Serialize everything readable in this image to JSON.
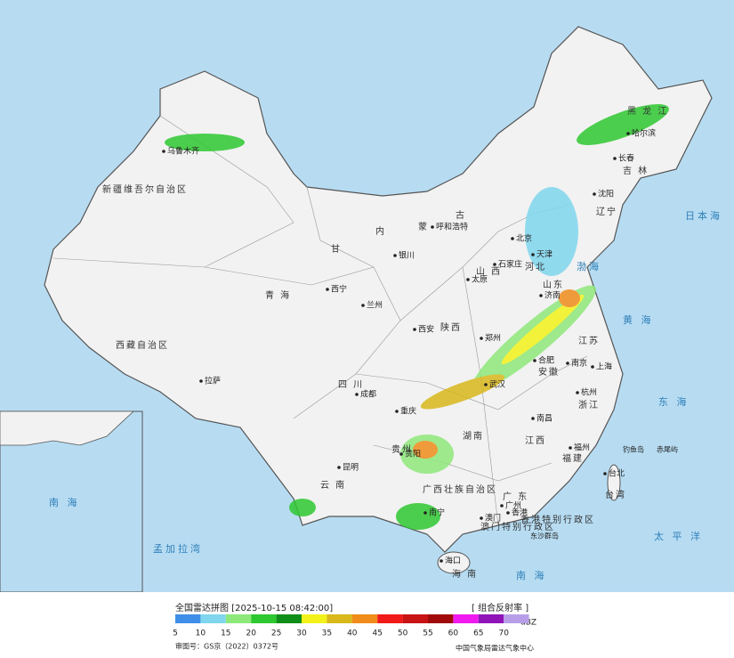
{
  "map": {
    "provinces": [
      "新疆维吾尔自治区",
      "西藏自治区",
      "青 海",
      "甘",
      "内",
      "蒙",
      "古",
      "四 川",
      "云 南",
      "贵州",
      "广西壮族自治区",
      "广 东",
      "湖南",
      "江西",
      "福建",
      "浙江",
      "安徽",
      "江苏",
      "山 西",
      "陕西",
      "山东",
      "河北",
      "辽宁",
      "吉 林",
      "黑 龙 江",
      "海 南",
      "台湾",
      "香港特别行政区",
      "澳门特别行政区"
    ],
    "cities": [
      "乌鲁木齐",
      "拉萨",
      "西宁",
      "兰州",
      "银川",
      "呼和浩特",
      "石家庄",
      "太原",
      "西安",
      "郑州",
      "成都",
      "重庆",
      "昆明",
      "贵阳",
      "南宁",
      "广州",
      "南昌",
      "福州",
      "台北",
      "杭州",
      "南京",
      "上海",
      "合肥",
      "武汉",
      "沈阳",
      "长春",
      "哈尔滨",
      "北京",
      "天津",
      "济南",
      "海口",
      "澳门",
      "香港"
    ],
    "seas": [
      "渤海",
      "黄 海",
      "东 海",
      "日本海",
      "太 平 洋",
      "南 海",
      "孟加拉湾",
      "南 海"
    ],
    "islands": [
      "钓鱼岛",
      "赤尾屿",
      "东沙群岛"
    ]
  },
  "legend": {
    "title": "全国雷达拼图 [2025-10-15 08:42:00]",
    "product": "[ 组合反射率 ]",
    "unit": "dBZ",
    "levels": [
      {
        "value": 5,
        "color": "#3f8fe8"
      },
      {
        "value": 10,
        "color": "#7fd6ee"
      },
      {
        "value": 15,
        "color": "#8ee87a"
      },
      {
        "value": 20,
        "color": "#2ec830"
      },
      {
        "value": 25,
        "color": "#0f8f1a"
      },
      {
        "value": 30,
        "color": "#f2f21a"
      },
      {
        "value": 35,
        "color": "#d8b81a"
      },
      {
        "value": 40,
        "color": "#f08c1a"
      },
      {
        "value": 45,
        "color": "#f01a1a"
      },
      {
        "value": 50,
        "color": "#c81414"
      },
      {
        "value": 55,
        "color": "#a00a0a"
      },
      {
        "value": 60,
        "color": "#f01af0"
      },
      {
        "value": 65,
        "color": "#9014b8"
      },
      {
        "value": 70,
        "color": "#b89ee8"
      }
    ],
    "approval": "审图号：GS京（2022）0372号",
    "source": "中国气象局雷达气象中心"
  }
}
